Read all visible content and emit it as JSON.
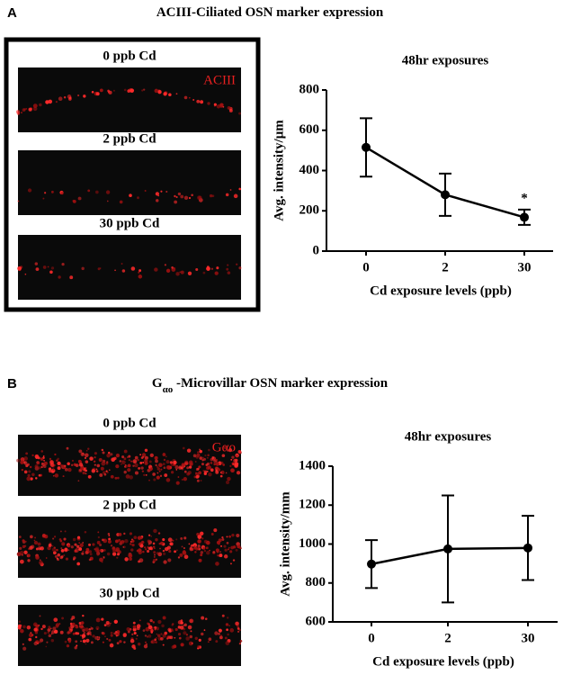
{
  "panels": [
    {
      "label": "A",
      "title": [
        "ACIII-Ciliated OSN marker expression"
      ],
      "image_labels": [
        "0 ppb Cd",
        "2 ppb Cd",
        "30 ppb Cd"
      ],
      "stain": "ACIII"
    },
    {
      "label": "B",
      "title": [
        "G",
        "αo",
        " -Microvillar OSN marker expression"
      ],
      "image_labels": [
        "0 ppb Cd",
        "2 ppb Cd",
        "30 ppb Cd"
      ],
      "stain": "Gαo"
    }
  ],
  "chart_data": [
    {
      "type": "line",
      "title": "48hr exposures",
      "x_label": "Cd exposure levels (ppb)",
      "y_label": "Avg. intensity/µm",
      "categories": [
        "0",
        "2",
        "30"
      ],
      "values": [
        515,
        280,
        168
      ],
      "errors": [
        145,
        105,
        38
      ],
      "significance": [
        null,
        null,
        "*"
      ],
      "color": "#000000",
      "ylim": [
        0,
        800
      ],
      "yticks": [
        0,
        200,
        400,
        600,
        800
      ]
    },
    {
      "type": "line",
      "title": "48hr exposures",
      "x_label": "Cd exposure levels (ppb)",
      "y_label": "Avg. intensity/mm",
      "categories": [
        "0",
        "2",
        "30"
      ],
      "values": [
        897,
        975,
        980
      ],
      "errors": [
        123,
        275,
        165
      ],
      "color": "#000000",
      "ylim": [
        600,
        1400
      ],
      "yticks": [
        600,
        800,
        1000,
        1200,
        1400
      ]
    }
  ]
}
